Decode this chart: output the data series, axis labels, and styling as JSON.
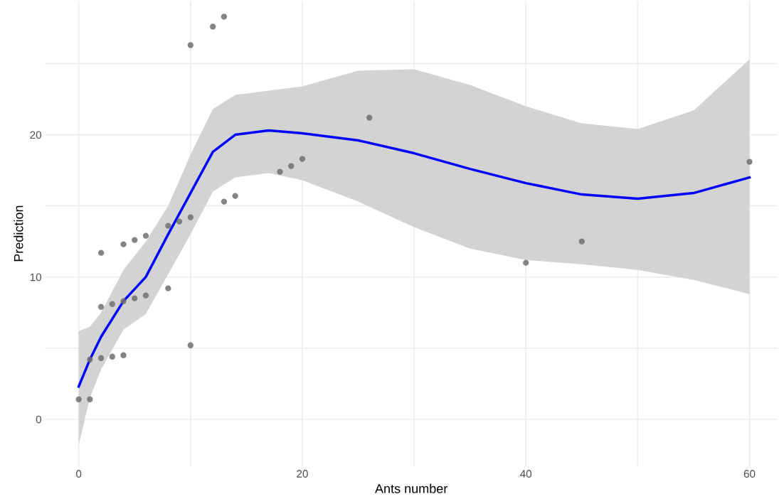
{
  "chart_data": {
    "type": "scatter",
    "xlabel": "Ants number",
    "ylabel": "Prediction",
    "xlim": [
      -3,
      62.5
    ],
    "ylim": [
      -3.3,
      29.4
    ],
    "xticks": [
      0,
      {
        "value": 10,
        "label": null
      },
      20,
      {
        "value": 30,
        "label": null
      },
      40,
      {
        "value": 50,
        "label": null
      },
      60
    ],
    "yticks": [
      0,
      {
        "value": 5,
        "label": null
      },
      10,
      {
        "value": 15,
        "label": null
      },
      20,
      {
        "value": 25,
        "label": null
      }
    ],
    "grid": true,
    "series": [
      {
        "marker": "circle",
        "color": "#6e6e6e",
        "x": [
          0,
          1,
          1,
          2,
          2,
          2,
          3,
          3,
          4,
          4,
          4,
          5,
          5,
          6,
          6,
          8,
          8,
          9,
          10,
          10,
          10,
          12,
          13,
          13,
          14,
          18,
          19,
          20,
          26,
          40,
          45,
          60
        ],
        "values": [
          1.4,
          1.4,
          4.2,
          4.3,
          7.9,
          11.7,
          4.4,
          8.1,
          4.5,
          8.3,
          12.3,
          8.5,
          12.6,
          8.7,
          12.9,
          9.2,
          13.6,
          13.9,
          5.2,
          14.2,
          26.3,
          27.6,
          28.3,
          15.3,
          15.7,
          17.4,
          17.8,
          18.3,
          21.2,
          11.0,
          12.5,
          18.1
        ]
      },
      {
        "type": "line",
        "marker": "none",
        "color": "#0000ff",
        "x": [
          0,
          1,
          2,
          4,
          6,
          8,
          10,
          12,
          14,
          17,
          20,
          25,
          30,
          35,
          40,
          45,
          50,
          55,
          60
        ],
        "values": [
          2.3,
          4.2,
          5.8,
          8.3,
          10.0,
          13.0,
          15.9,
          18.8,
          20.0,
          20.3,
          20.1,
          19.6,
          18.7,
          17.6,
          16.6,
          15.8,
          15.5,
          15.9,
          17.0
        ],
        "lower": [
          -1.8,
          1.5,
          3.5,
          6.3,
          7.4,
          10.2,
          13.0,
          16.0,
          17.0,
          17.3,
          16.8,
          15.3,
          13.5,
          12.0,
          11.2,
          10.9,
          10.5,
          9.8,
          8.8
        ],
        "upper": [
          6.2,
          6.5,
          7.5,
          10.5,
          12.5,
          15.0,
          18.6,
          21.8,
          22.8,
          23.1,
          23.4,
          24.5,
          24.6,
          23.5,
          22.0,
          20.8,
          20.4,
          21.7,
          25.3
        ]
      }
    ]
  }
}
